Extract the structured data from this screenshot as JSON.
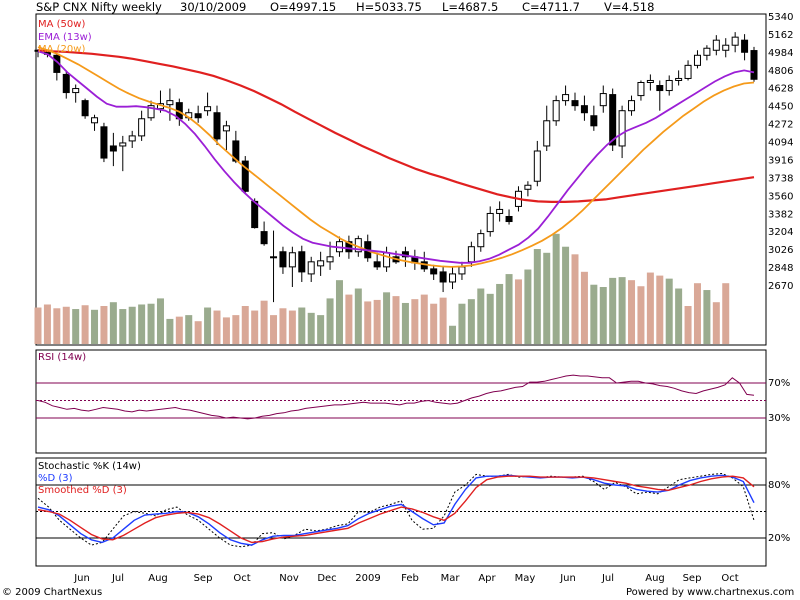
{
  "header": {
    "title": "S&P CNX Nifty weekly",
    "date": "30/10/2009",
    "open": "O=4997.15",
    "high": "H=5033.75",
    "low": "L=4687.5",
    "close": "C=4711.7",
    "volume": "V=4.518"
  },
  "footer": {
    "copyright": "© 2009 ChartNexus",
    "powered": "Powered by www.chartnexus.com"
  },
  "chart_data": [
    {
      "type": "candlestick",
      "legend": [
        {
          "name": "MA (50w)",
          "color": "#e02020"
        },
        {
          "name": "EMA (13w)",
          "color": "#9b1fd6"
        },
        {
          "name": "MA (20w)",
          "color": "#f59a1a"
        }
      ],
      "y_ticks": [
        "5340",
        "5162",
        "4984",
        "4806",
        "4628",
        "4450",
        "4272",
        "4094",
        "3916",
        "3738",
        "3560",
        "3382",
        "3204",
        "3026",
        "2848",
        "2670"
      ],
      "x_labels": [
        "Jun",
        "Jul",
        "Aug",
        "Sep",
        "Oct",
        "Nov",
        "Dec",
        "2009",
        "Feb",
        "Mar",
        "Apr",
        "May",
        "Jun",
        "Jul",
        "Aug",
        "Sep",
        "Oct"
      ],
      "ylim": [
        2480,
        5340
      ],
      "candles": [
        [
          5000,
          5010,
          4930,
          4990
        ],
        [
          4990,
          5000,
          4930,
          4960
        ],
        [
          4950,
          4960,
          4700,
          4780
        ],
        [
          4760,
          4800,
          4520,
          4580
        ],
        [
          4580,
          4660,
          4480,
          4620
        ],
        [
          4500,
          4520,
          4320,
          4350
        ],
        [
          4280,
          4360,
          4200,
          4330
        ],
        [
          4240,
          4280,
          3890,
          3930
        ],
        [
          4050,
          4180,
          3850,
          4000
        ],
        [
          4050,
          4150,
          3800,
          4080
        ],
        [
          4100,
          4200,
          4030,
          4150
        ],
        [
          4150,
          4400,
          4100,
          4320
        ],
        [
          4330,
          4500,
          4300,
          4450
        ],
        [
          4420,
          4600,
          4380,
          4470
        ],
        [
          4460,
          4620,
          4300,
          4500
        ],
        [
          4480,
          4520,
          4250,
          4320
        ],
        [
          4330,
          4420,
          4300,
          4380
        ],
        [
          4370,
          4450,
          4280,
          4330
        ],
        [
          4400,
          4580,
          4350,
          4440
        ],
        [
          4380,
          4450,
          4060,
          4120
        ],
        [
          4200,
          4300,
          4010,
          4250
        ],
        [
          4100,
          4200,
          3880,
          3900
        ],
        [
          3900,
          3950,
          3580,
          3600
        ],
        [
          3500,
          3530,
          3230,
          3240
        ],
        [
          3200,
          3300,
          3060,
          3080
        ],
        [
          2950,
          3210,
          2500,
          2950
        ],
        [
          3000,
          3050,
          2780,
          2850
        ],
        [
          2850,
          3050,
          2650,
          2990
        ],
        [
          3000,
          3060,
          2700,
          2800
        ],
        [
          2780,
          2950,
          2700,
          2900
        ],
        [
          2860,
          3000,
          2760,
          2910
        ],
        [
          2900,
          3100,
          2820,
          2950
        ],
        [
          3000,
          3150,
          2950,
          3100
        ],
        [
          3100,
          3160,
          2930,
          3000
        ],
        [
          3000,
          3160,
          2950,
          3130
        ],
        [
          3100,
          3170,
          2900,
          2940
        ],
        [
          2900,
          2990,
          2820,
          2850
        ],
        [
          2850,
          3050,
          2800,
          2990
        ],
        [
          2950,
          3010,
          2880,
          2900
        ],
        [
          3000,
          3050,
          2850,
          2950
        ],
        [
          2950,
          3020,
          2820,
          2890
        ],
        [
          2900,
          3000,
          2800,
          2830
        ],
        [
          2830,
          2870,
          2720,
          2780
        ],
        [
          2800,
          2860,
          2600,
          2700
        ],
        [
          2700,
          2850,
          2630,
          2780
        ],
        [
          2780,
          2900,
          2720,
          2850
        ],
        [
          2900,
          3100,
          2850,
          3050
        ],
        [
          3050,
          3220,
          3000,
          3180
        ],
        [
          3200,
          3450,
          3150,
          3380
        ],
        [
          3380,
          3500,
          3300,
          3420
        ],
        [
          3350,
          3420,
          3270,
          3300
        ],
        [
          3450,
          3650,
          3400,
          3600
        ],
        [
          3620,
          3700,
          3550,
          3660
        ],
        [
          3700,
          4100,
          3650,
          4000
        ],
        [
          4050,
          4450,
          4000,
          4300
        ],
        [
          4300,
          4550,
          4250,
          4500
        ],
        [
          4500,
          4650,
          4450,
          4560
        ],
        [
          4500,
          4580,
          4400,
          4450
        ],
        [
          4450,
          4550,
          4300,
          4380
        ],
        [
          4350,
          4450,
          4200,
          4250
        ],
        [
          4450,
          4650,
          4380,
          4570
        ],
        [
          4560,
          4620,
          4000,
          4060
        ],
        [
          4050,
          4450,
          3930,
          4400
        ],
        [
          4400,
          4550,
          4350,
          4500
        ],
        [
          4550,
          4700,
          4500,
          4680
        ],
        [
          4680,
          4760,
          4600,
          4700
        ],
        [
          4650,
          4700,
          4400,
          4600
        ],
        [
          4600,
          4750,
          4550,
          4700
        ],
        [
          4700,
          4800,
          4650,
          4720
        ],
        [
          4720,
          4900,
          4700,
          4850
        ],
        [
          4850,
          5000,
          4820,
          4950
        ],
        [
          4950,
          5050,
          4900,
          5020
        ],
        [
          5000,
          5150,
          4950,
          5100
        ],
        [
          5000,
          5120,
          4930,
          5050
        ],
        [
          5050,
          5180,
          4980,
          5130
        ],
        [
          5100,
          5160,
          4900,
          4980
        ],
        [
          4997,
          5034,
          4688,
          4712
        ]
      ],
      "ma50": [
        5000,
        4990,
        4985,
        4975,
        4965,
        4950,
        4935,
        4915,
        4890,
        4865,
        4840,
        4810,
        4780,
        4745,
        4700,
        4650,
        4595,
        4530,
        4465,
        4390,
        4320,
        4250,
        4180,
        4115,
        4050,
        3990,
        3930,
        3875,
        3820,
        3775,
        3735,
        3690,
        3650,
        3610,
        3570,
        3540,
        3515,
        3500,
        3495,
        3495,
        3500,
        3510,
        3520,
        3540,
        3560,
        3580,
        3600,
        3620,
        3640,
        3660,
        3680,
        3700,
        3720,
        3740
      ],
      "ema13": [
        4990,
        4960,
        4880,
        4780,
        4700,
        4620,
        4540,
        4470,
        4440,
        4440,
        4445,
        4435,
        4420,
        4400,
        4350,
        4270,
        4170,
        4050,
        3920,
        3800,
        3690,
        3590,
        3500,
        3420,
        3340,
        3260,
        3190,
        3130,
        3090,
        3070,
        3050,
        3040,
        3030,
        3020,
        3010,
        3000,
        2985,
        2970,
        2955,
        2940,
        2925,
        2910,
        2900,
        2890,
        2890,
        2905,
        2930,
        2970,
        3020,
        3070,
        3140,
        3230,
        3350,
        3480,
        3610,
        3730,
        3850,
        3960,
        4060,
        4140,
        4200,
        4240,
        4280,
        4330,
        4390,
        4450,
        4510,
        4570,
        4630,
        4690,
        4740,
        4780,
        4800,
        4780
      ],
      "ma20": [
        5030,
        5000,
        4960,
        4910,
        4860,
        4800,
        4740,
        4680,
        4620,
        4570,
        4525,
        4490,
        4460,
        4430,
        4390,
        4330,
        4250,
        4160,
        4060,
        3970,
        3880,
        3800,
        3720,
        3640,
        3560,
        3480,
        3400,
        3320,
        3250,
        3190,
        3130,
        3080,
        3040,
        3000,
        2970,
        2940,
        2915,
        2895,
        2880,
        2865,
        2855,
        2850,
        2855,
        2865,
        2885,
        2910,
        2940,
        2975,
        3015,
        3060,
        3110,
        3170,
        3240,
        3320,
        3410,
        3510,
        3610,
        3710,
        3810,
        3910,
        4010,
        4100,
        4190,
        4270,
        4350,
        4420,
        4490,
        4550,
        4600,
        4640,
        4670,
        4680
      ],
      "volume": [
        {
          "v": 48,
          "up": false
        },
        {
          "v": 52,
          "up": false
        },
        {
          "v": 47,
          "up": false
        },
        {
          "v": 49,
          "up": false
        },
        {
          "v": 46,
          "up": true
        },
        {
          "v": 51,
          "up": false
        },
        {
          "v": 45,
          "up": true
        },
        {
          "v": 50,
          "up": false
        },
        {
          "v": 55,
          "up": true
        },
        {
          "v": 46,
          "up": true
        },
        {
          "v": 49,
          "up": true
        },
        {
          "v": 52,
          "up": true
        },
        {
          "v": 53,
          "up": true
        },
        {
          "v": 60,
          "up": true
        },
        {
          "v": 33,
          "up": true
        },
        {
          "v": 36,
          "up": false
        },
        {
          "v": 38,
          "up": true
        },
        {
          "v": 30,
          "up": false
        },
        {
          "v": 48,
          "up": true
        },
        {
          "v": 44,
          "up": false
        },
        {
          "v": 35,
          "up": false
        },
        {
          "v": 38,
          "up": false
        },
        {
          "v": 50,
          "up": false
        },
        {
          "v": 44,
          "up": false
        },
        {
          "v": 57,
          "up": false
        },
        {
          "v": 38,
          "up": false
        },
        {
          "v": 47,
          "up": false
        },
        {
          "v": 44,
          "up": false
        },
        {
          "v": 48,
          "up": true
        },
        {
          "v": 41,
          "up": true
        },
        {
          "v": 38,
          "up": true
        },
        {
          "v": 60,
          "up": true
        },
        {
          "v": 84,
          "up": true
        },
        {
          "v": 65,
          "up": false
        },
        {
          "v": 73,
          "up": true
        },
        {
          "v": 56,
          "up": false
        },
        {
          "v": 58,
          "up": false
        },
        {
          "v": 68,
          "up": true
        },
        {
          "v": 63,
          "up": false
        },
        {
          "v": 54,
          "up": true
        },
        {
          "v": 59,
          "up": false
        },
        {
          "v": 65,
          "up": false
        },
        {
          "v": 53,
          "up": false
        },
        {
          "v": 61,
          "up": false
        },
        {
          "v": 24,
          "up": true
        },
        {
          "v": 53,
          "up": true
        },
        {
          "v": 59,
          "up": true
        },
        {
          "v": 73,
          "up": true
        },
        {
          "v": 66,
          "up": true
        },
        {
          "v": 79,
          "up": true
        },
        {
          "v": 92,
          "up": true
        },
        {
          "v": 85,
          "up": false
        },
        {
          "v": 98,
          "up": true
        },
        {
          "v": 125,
          "up": true
        },
        {
          "v": 120,
          "up": true
        },
        {
          "v": 145,
          "up": true
        },
        {
          "v": 128,
          "up": true
        },
        {
          "v": 118,
          "up": false
        },
        {
          "v": 95,
          "up": false
        },
        {
          "v": 78,
          "up": true
        },
        {
          "v": 75,
          "up": true
        },
        {
          "v": 87,
          "up": true
        },
        {
          "v": 88,
          "up": true
        },
        {
          "v": 84,
          "up": false
        },
        {
          "v": 76,
          "up": false
        },
        {
          "v": 94,
          "up": false
        },
        {
          "v": 90,
          "up": false
        },
        {
          "v": 86,
          "up": true
        },
        {
          "v": 73,
          "up": true
        },
        {
          "v": 50,
          "up": false
        },
        {
          "v": 80,
          "up": false
        },
        {
          "v": 71,
          "up": true
        },
        {
          "v": 55,
          "up": false
        },
        {
          "v": 80,
          "up": false
        }
      ]
    },
    {
      "type": "line",
      "legend": [
        {
          "name": "RSI (14w)",
          "color": "#800050"
        }
      ],
      "y_ticks": [
        "70%",
        "30%"
      ],
      "ylim": [
        0,
        100
      ],
      "levels": [
        70,
        50,
        30
      ],
      "values": [
        50,
        48,
        44,
        42,
        40,
        41,
        39,
        38,
        40,
        42,
        41,
        40,
        38,
        37,
        39,
        38,
        39,
        40,
        41,
        42,
        40,
        39,
        37,
        35,
        33,
        32,
        30,
        31,
        30,
        29,
        30,
        32,
        33,
        35,
        36,
        38,
        39,
        41,
        42,
        43,
        44,
        45,
        45,
        46,
        47,
        48,
        47,
        47,
        47,
        46,
        45,
        47,
        47,
        49,
        50,
        48,
        47,
        46,
        47,
        50,
        53,
        55,
        58,
        60,
        61,
        63,
        65,
        66,
        71,
        71,
        72,
        74,
        76,
        78,
        79,
        78,
        78,
        77,
        76,
        76,
        70,
        71,
        72,
        72,
        70,
        69,
        67,
        66,
        64,
        61,
        59,
        58,
        61,
        63,
        65,
        68,
        76,
        70,
        57,
        56
      ]
    },
    {
      "type": "line",
      "legend": [
        {
          "name": "Stochastic %K (14w)",
          "color": "#000000"
        },
        {
          "name": "%D (3)",
          "color": "#1e3cff"
        },
        {
          "name": "Smoothed %D (3)",
          "color": "#e02020"
        }
      ],
      "y_ticks": [
        "80%",
        "20%"
      ],
      "ylim": [
        0,
        100
      ],
      "levels": [
        80,
        50,
        20
      ],
      "k": [
        65,
        55,
        40,
        30,
        20,
        12,
        15,
        30,
        45,
        50,
        48,
        45,
        52,
        55,
        46,
        40,
        30,
        20,
        12,
        10,
        12,
        25,
        26,
        19,
        23,
        30,
        28,
        30,
        34,
        36,
        50,
        49,
        55,
        58,
        62,
        40,
        30,
        31,
        45,
        72,
        80,
        92,
        90,
        90,
        92,
        89,
        90,
        88,
        90,
        89,
        89,
        90,
        84,
        75,
        83,
        78,
        70,
        72,
        70,
        78,
        86,
        88,
        90,
        92,
        93,
        88,
        78,
        40
      ],
      "d": [
        55,
        52,
        45,
        35,
        25,
        18,
        15,
        20,
        30,
        40,
        46,
        47,
        48,
        50,
        49,
        44,
        36,
        26,
        18,
        14,
        12,
        18,
        22,
        23,
        23,
        25,
        27,
        29,
        31,
        34,
        42,
        48,
        52,
        56,
        58,
        50,
        42,
        35,
        37,
        58,
        75,
        88,
        90,
        90,
        91,
        90,
        89,
        88,
        89,
        89,
        88,
        89,
        86,
        82,
        80,
        79,
        75,
        73,
        72,
        74,
        80,
        85,
        88,
        90,
        91,
        89,
        84,
        60
      ],
      "sd": [
        52,
        50,
        47,
        40,
        32,
        24,
        19,
        18,
        23,
        30,
        37,
        43,
        46,
        48,
        49,
        47,
        43,
        36,
        28,
        20,
        15,
        16,
        19,
        21,
        22,
        23,
        25,
        27,
        29,
        31,
        37,
        42,
        47,
        51,
        55,
        53,
        49,
        44,
        40,
        48,
        62,
        77,
        86,
        89,
        90,
        90,
        90,
        89,
        89,
        89,
        89,
        89,
        88,
        86,
        84,
        82,
        79,
        77,
        75,
        74,
        77,
        80,
        84,
        87,
        89,
        90,
        88,
        78
      ]
    }
  ]
}
